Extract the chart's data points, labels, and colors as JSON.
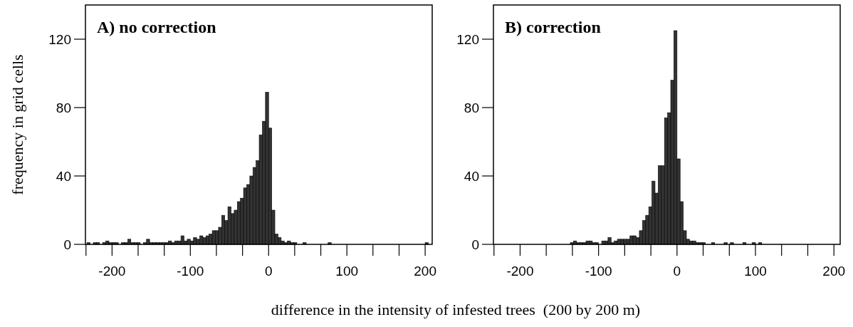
{
  "chart_data": [
    {
      "type": "histogram",
      "title": "A) no correction",
      "ylabel": "frequency in grid cells",
      "xlabel": "difference in the intensity of infested trees  (200 by 200 m)",
      "color": "#333333",
      "bins": [
        -232,
        -228,
        -224,
        -220,
        -216,
        -212,
        -208,
        -204,
        -200,
        -196,
        -192,
        -188,
        -184,
        -180,
        -176,
        -172,
        -168,
        -164,
        -160,
        -156,
        -152,
        -148,
        -144,
        -140,
        -136,
        -132,
        -128,
        -124,
        -120,
        -116,
        -112,
        -108,
        -104,
        -100,
        -96,
        -92,
        -88,
        -84,
        -80,
        -76,
        -72,
        -68,
        -64,
        -60,
        -56,
        -52,
        -48,
        -44,
        -40,
        -36,
        -32,
        -28,
        -24,
        -20,
        -16,
        -12,
        -8,
        -4,
        0,
        4,
        8,
        12,
        16,
        20,
        24,
        28,
        32,
        36,
        40,
        44,
        48,
        52,
        56,
        60,
        64,
        68,
        72,
        76,
        80,
        84,
        88,
        92,
        96,
        100,
        104,
        108,
        112,
        116,
        120,
        124,
        128,
        132,
        136,
        140,
        144,
        148,
        152,
        156,
        160,
        164,
        168,
        172,
        176,
        180,
        184,
        188,
        192,
        196,
        200,
        204,
        208
      ],
      "values": [
        1,
        0,
        1,
        1,
        0,
        1,
        2,
        1,
        1,
        1,
        0,
        1,
        1,
        3,
        1,
        1,
        1,
        0,
        1,
        3,
        1,
        1,
        1,
        1,
        1,
        1,
        2,
        1,
        2,
        2,
        5,
        2,
        3,
        2,
        4,
        3,
        5,
        4,
        5,
        6,
        8,
        8,
        10,
        17,
        14,
        22,
        18,
        20,
        25,
        27,
        33,
        35,
        40,
        45,
        49,
        64,
        72,
        89,
        68,
        20,
        6,
        4,
        2,
        1,
        2,
        1,
        1,
        0,
        0,
        1,
        0,
        0,
        0,
        0,
        0,
        0,
        0,
        1,
        0,
        0,
        0,
        0,
        0,
        0,
        0,
        0,
        0,
        0,
        0,
        0,
        0,
        0,
        0,
        0,
        0,
        0,
        0,
        0,
        0,
        0,
        0,
        0,
        0,
        0,
        0,
        0,
        0,
        0,
        1,
        0
      ],
      "xlim": [
        -234,
        209
      ],
      "ylim": [
        0,
        140
      ],
      "xticks": [
        {
          "value": -233.3,
          "label": null
        },
        -200,
        {
          "value": -166.7,
          "label": null
        },
        {
          "value": -133.3,
          "label": null
        },
        -100,
        {
          "value": -66.7,
          "label": null
        },
        {
          "value": -33.3,
          "label": null
        },
        0,
        {
          "value": 33.3,
          "label": null
        },
        {
          "value": 66.7,
          "label": null
        },
        100,
        {
          "value": 133.3,
          "label": null
        },
        {
          "value": 166.7,
          "label": null
        },
        200
      ],
      "yticks": [
        0,
        40,
        80,
        120
      ],
      "grid": false
    },
    {
      "type": "histogram",
      "title": "B) correction",
      "color": "#333333",
      "bins": [
        -232,
        -228,
        -224,
        -220,
        -216,
        -212,
        -208,
        -204,
        -200,
        -196,
        -192,
        -188,
        -184,
        -180,
        -176,
        -172,
        -168,
        -164,
        -160,
        -156,
        -152,
        -148,
        -144,
        -140,
        -136,
        -132,
        -128,
        -124,
        -120,
        -116,
        -112,
        -108,
        -104,
        -100,
        -96,
        -92,
        -88,
        -84,
        -80,
        -76,
        -72,
        -68,
        -64,
        -60,
        -56,
        -52,
        -48,
        -44,
        -40,
        -36,
        -32,
        -28,
        -24,
        -20,
        -16,
        -12,
        -8,
        -4,
        0,
        4,
        8,
        12,
        16,
        20,
        24,
        28,
        32,
        36,
        40,
        44,
        48,
        52,
        56,
        60,
        64,
        68,
        72,
        76,
        80,
        84,
        88,
        92,
        96,
        100,
        104,
        108,
        112,
        116,
        120,
        124,
        128,
        132,
        136,
        140,
        144,
        148,
        152,
        156,
        160,
        164,
        168,
        172,
        176,
        180,
        184,
        188,
        192,
        196,
        200,
        204,
        208
      ],
      "values": [
        0,
        0,
        0,
        0,
        0,
        0,
        0,
        0,
        0,
        0,
        0,
        0,
        0,
        0,
        0,
        0,
        0,
        0,
        0,
        0,
        0,
        0,
        0,
        0,
        1,
        2,
        1,
        1,
        1,
        2,
        2,
        1,
        1,
        0,
        2,
        2,
        4,
        1,
        2,
        3,
        3,
        3,
        3,
        5,
        5,
        4,
        8,
        14,
        17,
        22,
        37,
        30,
        46,
        46,
        74,
        77,
        96,
        125,
        50,
        25,
        8,
        3,
        2,
        2,
        1,
        1,
        1,
        0,
        0,
        1,
        0,
        0,
        0,
        1,
        0,
        1,
        0,
        0,
        0,
        1,
        0,
        0,
        1,
        0,
        1,
        0,
        0,
        0,
        0,
        0,
        0,
        0,
        0,
        0,
        0,
        0,
        0,
        0,
        0,
        0,
        0,
        0,
        0,
        0,
        0,
        0,
        0,
        0,
        0,
        0
      ],
      "xlim": [
        -234,
        208
      ],
      "ylim": [
        0,
        140
      ],
      "xticks": [
        {
          "value": -233.3,
          "label": null
        },
        -200,
        {
          "value": -166.7,
          "label": null
        },
        {
          "value": -133.3,
          "label": null
        },
        -100,
        {
          "value": -66.7,
          "label": null
        },
        {
          "value": -33.3,
          "label": null
        },
        0,
        {
          "value": 33.3,
          "label": null
        },
        {
          "value": 66.7,
          "label": null
        },
        100,
        {
          "value": 133.3,
          "label": null
        },
        {
          "value": 166.7,
          "label": null
        },
        200
      ],
      "yticks": [
        0,
        40,
        80,
        120
      ],
      "grid": false
    }
  ]
}
